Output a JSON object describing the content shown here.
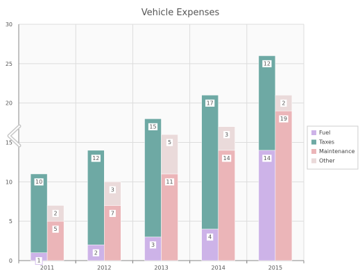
{
  "chart_data": {
    "type": "bar",
    "title": "Vehicle Expenses",
    "xlabel": "",
    "ylabel": "",
    "categories": [
      "2011",
      "2012",
      "2013",
      "2014",
      "2015"
    ],
    "ylim": [
      0,
      30
    ],
    "yticks": [
      0,
      5,
      10,
      15,
      20,
      25,
      30
    ],
    "grid": true,
    "legend_position": "right",
    "stacks": [
      {
        "id": "left",
        "series": [
          "Fuel",
          "Taxes"
        ]
      },
      {
        "id": "right",
        "series": [
          "Maintenance",
          "Other"
        ]
      }
    ],
    "series": [
      {
        "name": "Fuel",
        "color": "#cdb3e8",
        "values": [
          1,
          2,
          3,
          4,
          14
        ]
      },
      {
        "name": "Taxes",
        "color": "#6ea9a4",
        "values": [
          10,
          12,
          15,
          17,
          12
        ]
      },
      {
        "name": "Maintenance",
        "color": "#ebb5b8",
        "values": [
          5,
          7,
          11,
          14,
          19
        ]
      },
      {
        "name": "Other",
        "color": "#eadada",
        "values": [
          2,
          3,
          5,
          3,
          2
        ]
      }
    ]
  },
  "nav": {
    "previous_icon": "chevron-left-icon"
  }
}
